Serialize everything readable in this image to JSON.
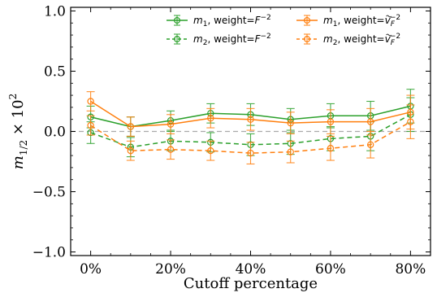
{
  "chart_data": {
    "type": "line",
    "xlabel": "Cutoff percentage",
    "ylabel_main": "m",
    "ylabel_sub": "1/2",
    "ylabel_rest": " × 10",
    "ylabel_sup": "2",
    "xlim": [
      -5,
      85
    ],
    "ylim": [
      -1.03,
      1.03
    ],
    "x_ticks": [
      0,
      20,
      40,
      60,
      80
    ],
    "x_tick_labels": [
      "0%",
      "20%",
      "40%",
      "60%",
      "80%"
    ],
    "y_ticks": [
      -1.0,
      -0.5,
      0.0,
      0.5,
      1.0
    ],
    "y_tick_labels": [
      "−1.0",
      "−0.5",
      "0.0",
      "0.5",
      "1.0"
    ],
    "reference_line": 0.0,
    "legend_position": "top-right",
    "series": [
      {
        "name": "m1, weight=F^-2",
        "color": "#2ca02c",
        "linestyle": "solid",
        "x": [
          0,
          10,
          20,
          30,
          40,
          50,
          60,
          70,
          80
        ],
        "y": [
          0.12,
          0.04,
          0.09,
          0.15,
          0.14,
          0.1,
          0.13,
          0.13,
          0.21
        ],
        "err": [
          0.09,
          0.08,
          0.08,
          0.08,
          0.09,
          0.09,
          0.1,
          0.12,
          0.14
        ]
      },
      {
        "name": "m2, weight=F^-2",
        "color": "#2ca02c",
        "linestyle": "dashed",
        "x": [
          0,
          10,
          20,
          30,
          40,
          50,
          60,
          70,
          80
        ],
        "y": [
          -0.01,
          -0.13,
          -0.08,
          -0.09,
          -0.11,
          -0.1,
          -0.06,
          -0.04,
          0.14
        ],
        "err": [
          0.09,
          0.08,
          0.08,
          0.08,
          0.09,
          0.09,
          0.1,
          0.12,
          0.14
        ]
      },
      {
        "name": "m1, weight=vF^-2",
        "color": "#ff7f0e",
        "linestyle": "solid",
        "x": [
          0,
          10,
          20,
          30,
          40,
          50,
          60,
          70,
          80
        ],
        "y": [
          0.25,
          0.04,
          0.06,
          0.11,
          0.1,
          0.07,
          0.08,
          0.08,
          0.16
        ],
        "err": [
          0.08,
          0.08,
          0.08,
          0.08,
          0.09,
          0.09,
          0.1,
          0.11,
          0.14
        ]
      },
      {
        "name": "m2, weight=vF^-2",
        "color": "#ff7f0e",
        "linestyle": "dashed",
        "x": [
          0,
          10,
          20,
          30,
          40,
          50,
          60,
          70,
          80
        ],
        "y": [
          0.05,
          -0.16,
          -0.15,
          -0.16,
          -0.18,
          -0.17,
          -0.14,
          -0.11,
          0.08
        ],
        "err": [
          0.08,
          0.08,
          0.08,
          0.08,
          0.09,
          0.09,
          0.1,
          0.11,
          0.14
        ]
      }
    ],
    "legend": [
      {
        "var": "m",
        "sub": "1",
        "text": ", weight=",
        "w_var": "F",
        "w_sup": "−2",
        "w_tilde": false
      },
      {
        "var": "m",
        "sub": "2",
        "text": ", weight=",
        "w_var": "F",
        "w_sup": "−2",
        "w_tilde": false
      },
      {
        "var": "m",
        "sub": "1",
        "text": ", weight=",
        "w_var": "v",
        "w_sub": "F",
        "w_sup": "−2",
        "w_tilde": true
      },
      {
        "var": "m",
        "sub": "2",
        "text": ", weight=",
        "w_var": "v",
        "w_sub": "F",
        "w_sup": "−2",
        "w_tilde": true
      }
    ]
  }
}
